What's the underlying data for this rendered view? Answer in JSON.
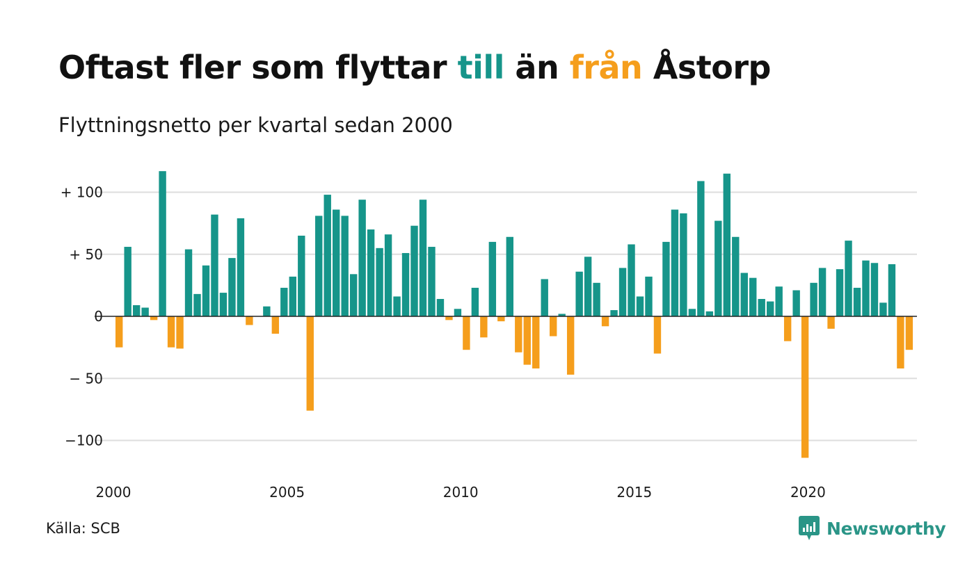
{
  "title": {
    "part1": "Oftast fler som flyttar ",
    "highlight_in": "till",
    "part2": " än ",
    "highlight_out": "från",
    "part3": " Åstorp"
  },
  "subtitle": "Flyttningsnetto per kvartal sedan 2000",
  "source": "Källa: SCB",
  "brand": "Newsworthy",
  "colors": {
    "positive": "#16958a",
    "negative": "#f59e1c",
    "grid": "#dddddd",
    "text": "#111111"
  },
  "chart_data": {
    "type": "bar",
    "title": "Oftast fler som flyttar till än från Åstorp",
    "subtitle": "Flyttningsnetto per kvartal sedan 2000",
    "x_start": 2000,
    "period": "quarter",
    "ylim": [
      -125,
      125
    ],
    "yticks": [
      {
        "value": 100,
        "label": "+ 100"
      },
      {
        "value": 50,
        "label": "+  50"
      },
      {
        "value": 0,
        "label": "0"
      },
      {
        "value": -50,
        "label": "− 50"
      },
      {
        "value": -100,
        "label": "−100"
      }
    ],
    "xticks": [
      {
        "value": 2000,
        "label": "2000"
      },
      {
        "value": 2005,
        "label": "2005"
      },
      {
        "value": 2010,
        "label": "2010"
      },
      {
        "value": 2015,
        "label": "2015"
      },
      {
        "value": 2020,
        "label": "2020"
      }
    ],
    "grid": true,
    "values": [
      -25,
      56,
      9,
      7,
      -3,
      117,
      -25,
      -26,
      54,
      18,
      41,
      82,
      19,
      47,
      79,
      -7,
      0,
      8,
      -14,
      23,
      32,
      65,
      -76,
      81,
      98,
      86,
      81,
      34,
      94,
      70,
      55,
      66,
      16,
      51,
      73,
      94,
      56,
      14,
      -3,
      6,
      -27,
      23,
      -17,
      60,
      -4,
      64,
      -29,
      -39,
      -42,
      30,
      -16,
      2,
      -47,
      36,
      48,
      27,
      -8,
      5,
      39,
      58,
      16,
      32,
      -30,
      60,
      86,
      83,
      6,
      109,
      4,
      77,
      115,
      64,
      35,
      31,
      14,
      12,
      24,
      -20,
      21,
      -114,
      27,
      39,
      -10,
      38,
      61,
      23,
      45,
      43,
      11,
      42,
      -42,
      -27
    ]
  }
}
